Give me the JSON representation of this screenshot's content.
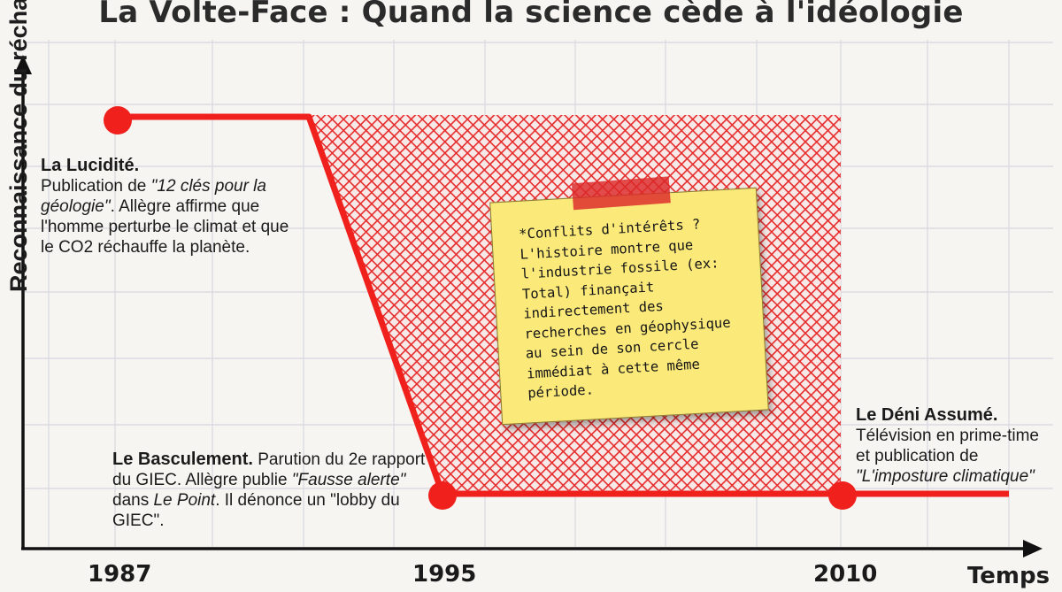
{
  "title": "La Volte-Face : Quand la science cède à l'idéologie",
  "y_axis_label": "Reconnaissance du réchauffement",
  "x_axis_label": "Temps",
  "x_ticks": [
    "1987",
    "1995",
    "2010"
  ],
  "annotations": {
    "lucidite": {
      "heading": "La Lucidité.",
      "text_before": "Publication de ",
      "book": "\"12 clés pour la géologie\"",
      "text_after": ". Allègre affirme que l'homme perturbe le climat et que le CO2 réchauffe la planète."
    },
    "basculement": {
      "heading": "Le Basculement.",
      "text_before": " Parution du 2e rapport du GIEC. Allègre publie ",
      "book": "\"Fausse alerte\"",
      "text_mid": " dans ",
      "magazine": "Le Point",
      "text_after": ". Il dénonce un \"lobby du GIEC\"."
    },
    "deni": {
      "heading": "Le Déni Assumé.",
      "line1": "Télévision en prime-time",
      "line2": "et publication de",
      "book": "\"L'imposture climatique\""
    }
  },
  "sticky_note": {
    "text": "*Conflits d'intérêts ?\nL'histoire montre que\nl'industrie fossile (ex:\nTotal) finançait\nindirectement des\nrecherches en géophysique\nau sein de son cercle\nimmédiat à cette même\npériode."
  },
  "colors": {
    "line": "#f0201c",
    "hatch": "#e51b1b",
    "note": "#fbe97a",
    "grid": "#d7d8e0"
  },
  "chart_data": {
    "type": "line",
    "title": "La Volte-Face : Quand la science cède à l'idéologie",
    "xlabel": "Temps",
    "ylabel": "Reconnaissance du réchauffement",
    "x_ticks": [
      "1987",
      "1995",
      "2010"
    ],
    "series": [
      {
        "points": [
          {
            "x": 1987,
            "y": "high",
            "marker": true
          },
          {
            "x": 1991,
            "y": "high",
            "marker": false
          },
          {
            "x": 1995,
            "y": "low",
            "marker": true
          },
          {
            "x": 2010,
            "y": "low",
            "marker": true
          }
        ]
      }
    ],
    "shaded_region": {
      "x_start": 1991,
      "x_end": 2010,
      "pattern": "crosshatch"
    },
    "grid": true
  }
}
